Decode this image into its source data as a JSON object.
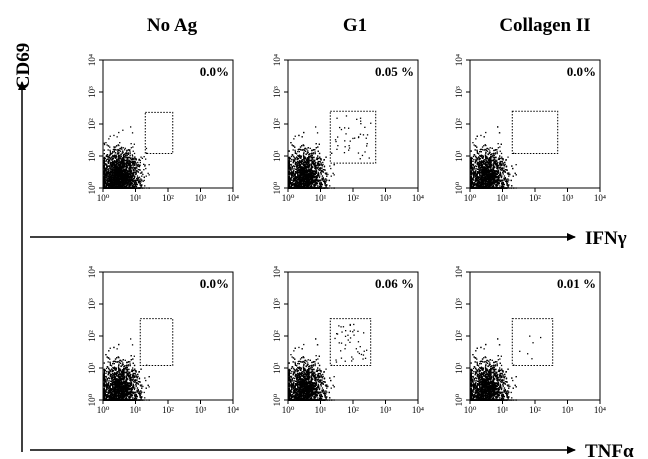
{
  "figure": {
    "column_titles": [
      "No Ag",
      "G1",
      "Collagen II"
    ],
    "y_axis_label": "CD69",
    "row_axis_labels": [
      "IFNγ",
      "TNFα"
    ]
  },
  "chart_data": [
    {
      "type": "scatter",
      "row": "IFNγ",
      "column": "No Ag",
      "gate_percent": "0.0%",
      "x_scale": "log",
      "y_scale": "log",
      "xlim": [
        1,
        10000
      ],
      "ylim": [
        1,
        10000
      ],
      "x_ticks": [
        "10⁰",
        "10¹",
        "10²",
        "10³",
        "10⁴"
      ],
      "y_ticks": [
        "10⁰",
        "10¹",
        "10²",
        "10³",
        "10⁴"
      ],
      "gate": {
        "x": [
          20,
          140
        ],
        "y": [
          12,
          230
        ]
      },
      "gate_events": 0,
      "population": {
        "x_center": 3,
        "y_center": 2
      }
    },
    {
      "type": "scatter",
      "row": "IFNγ",
      "column": "G1",
      "gate_percent": "0.05 %",
      "x_scale": "log",
      "y_scale": "log",
      "xlim": [
        1,
        10000
      ],
      "ylim": [
        1,
        10000
      ],
      "x_ticks": [
        "10⁰",
        "10¹",
        "10²",
        "10³",
        "10⁴"
      ],
      "y_ticks": [
        "10⁰",
        "10¹",
        "10²",
        "10³",
        "10⁴"
      ],
      "gate": {
        "x": [
          20,
          500
        ],
        "y": [
          6,
          250
        ]
      },
      "gate_events": 40,
      "population": {
        "x_center": 3,
        "y_center": 2
      }
    },
    {
      "type": "scatter",
      "row": "IFNγ",
      "column": "Collagen II",
      "gate_percent": "0.0%",
      "x_scale": "log",
      "y_scale": "log",
      "xlim": [
        1,
        10000
      ],
      "ylim": [
        1,
        10000
      ],
      "x_ticks": [
        "10⁰",
        "10¹",
        "10²",
        "10³",
        "10⁴"
      ],
      "y_ticks": [
        "10⁰",
        "10¹",
        "10²",
        "10³",
        "10⁴"
      ],
      "gate": {
        "x": [
          20,
          500
        ],
        "y": [
          12,
          250
        ]
      },
      "gate_events": 0,
      "population": {
        "x_center": 3,
        "y_center": 2
      }
    },
    {
      "type": "scatter",
      "row": "TNFα",
      "column": "No Ag",
      "gate_percent": "0.0%",
      "x_scale": "log",
      "y_scale": "log",
      "xlim": [
        1,
        10000
      ],
      "ylim": [
        1,
        10000
      ],
      "x_ticks": [
        "10⁰",
        "10¹",
        "10²",
        "10³",
        "10⁴"
      ],
      "y_ticks": [
        "10⁰",
        "10¹",
        "10²",
        "10³",
        "10⁴"
      ],
      "gate": {
        "x": [
          14,
          140
        ],
        "y": [
          12,
          350
        ]
      },
      "gate_events": 0,
      "population": {
        "x_center": 3,
        "y_center": 2
      }
    },
    {
      "type": "scatter",
      "row": "TNFα",
      "column": "G1",
      "gate_percent": "0.06 %",
      "x_scale": "log",
      "y_scale": "log",
      "xlim": [
        1,
        10000
      ],
      "ylim": [
        1,
        10000
      ],
      "x_ticks": [
        "10⁰",
        "10¹",
        "10²",
        "10³",
        "10⁴"
      ],
      "y_ticks": [
        "10⁰",
        "10¹",
        "10²",
        "10³",
        "10⁴"
      ],
      "gate": {
        "x": [
          20,
          350
        ],
        "y": [
          12,
          350
        ]
      },
      "gate_events": 45,
      "population": {
        "x_center": 3,
        "y_center": 2
      }
    },
    {
      "type": "scatter",
      "row": "TNFα",
      "column": "Collagen II",
      "gate_percent": "0.01 %",
      "x_scale": "log",
      "y_scale": "log",
      "xlim": [
        1,
        10000
      ],
      "ylim": [
        1,
        10000
      ],
      "x_ticks": [
        "10⁰",
        "10¹",
        "10²",
        "10³",
        "10⁴"
      ],
      "y_ticks": [
        "10⁰",
        "10¹",
        "10²",
        "10³",
        "10⁴"
      ],
      "gate": {
        "x": [
          20,
          350
        ],
        "y": [
          12,
          350
        ]
      },
      "gate_events": 6,
      "population": {
        "x_center": 3,
        "y_center": 2
      }
    }
  ]
}
